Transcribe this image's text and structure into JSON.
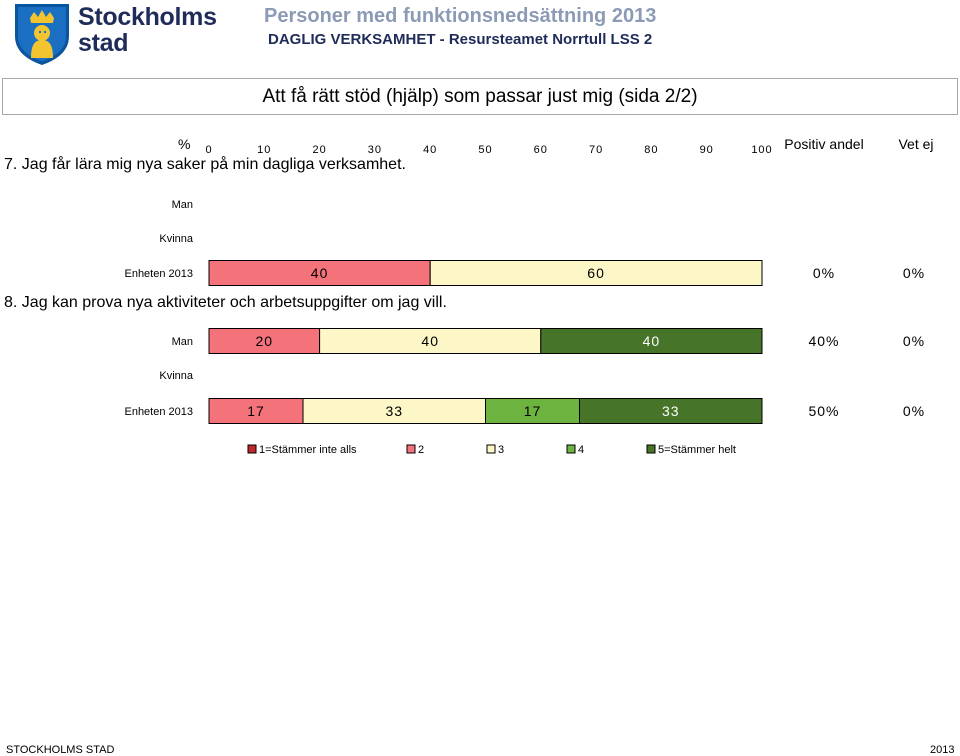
{
  "header": {
    "org_name_line1": "Stockholms",
    "org_name_line2": "stad",
    "report_title": "Personer med funktionsnedsättning 2013",
    "report_subtitle": "DAGLIG VERKSAMHET - Resursteamet Norrtull LSS 2"
  },
  "section": {
    "title": "Att få rätt stöd (hjälp) som passar just mig (sida 2/2)"
  },
  "chart_data": {
    "type": "bar",
    "orientation": "horizontal",
    "stacked": true,
    "axis_label": "%",
    "xlim": [
      0,
      100
    ],
    "ticks": [
      0,
      10,
      20,
      30,
      40,
      50,
      60,
      70,
      80,
      90,
      100
    ],
    "column_headers": {
      "positive": "Positiv andel",
      "dont_know": "Vet ej"
    },
    "categories_legend": [
      {
        "label": "1=Stämmer inte alls",
        "color": "#c0282d"
      },
      {
        "label": "2",
        "color": "#f4737b"
      },
      {
        "label": "3",
        "color": "#fdf7c7"
      },
      {
        "label": "4",
        "color": "#6db33f"
      },
      {
        "label": "5=Stämmer helt",
        "color": "#46752a"
      }
    ],
    "questions": [
      {
        "label": "7. Jag får lära mig nya saker på min dagliga verksamhet.",
        "rows": [
          {
            "group": "Man",
            "segments": []
          },
          {
            "group": "Kvinna",
            "segments": []
          },
          {
            "group": "Enheten 2013",
            "segments": [
              {
                "category": 2,
                "value": 40,
                "label": "40"
              },
              {
                "category": 3,
                "value": 60,
                "label": "60"
              }
            ],
            "positive": "0%",
            "dont_know": "0%"
          }
        ]
      },
      {
        "label": "8. Jag kan prova nya aktiviteter och arbetsuppgifter om jag vill.",
        "rows": [
          {
            "group": "Man",
            "segments": [
              {
                "category": 2,
                "value": 20,
                "label": "20"
              },
              {
                "category": 3,
                "value": 40,
                "label": "40"
              },
              {
                "category": 5,
                "value": 40,
                "label": "40"
              }
            ],
            "positive": "40%",
            "dont_know": "0%"
          },
          {
            "group": "Kvinna",
            "segments": []
          },
          {
            "group": "Enheten 2013",
            "segments": [
              {
                "category": 2,
                "value": 17,
                "label": "17"
              },
              {
                "category": 3,
                "value": 33,
                "label": "33"
              },
              {
                "category": 4,
                "value": 17,
                "label": "17"
              },
              {
                "category": 5,
                "value": 33,
                "label": "33"
              }
            ],
            "positive": "50%",
            "dont_know": "0%"
          }
        ]
      }
    ]
  },
  "footer": {
    "left": "STOCKHOLMS STAD",
    "right": "2013"
  }
}
